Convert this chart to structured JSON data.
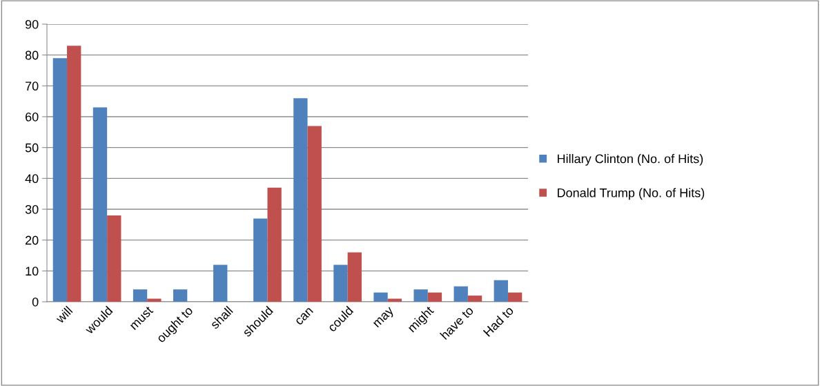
{
  "chart_data": {
    "type": "bar",
    "categories": [
      "will",
      "would",
      "must",
      "ought to",
      "shall",
      "should",
      "can",
      "could",
      "may",
      "might",
      "have to",
      "Had to"
    ],
    "series": [
      {
        "name": "Hillary Clinton (No. of Hits)",
        "color": "#4f81bd",
        "values": [
          79,
          63,
          4,
          4,
          12,
          27,
          66,
          12,
          3,
          4,
          5,
          7
        ]
      },
      {
        "name": "Donald Trump (No. of Hits)",
        "color": "#c0504d",
        "values": [
          83,
          28,
          1,
          0,
          0,
          37,
          57,
          16,
          1,
          3,
          2,
          3
        ]
      }
    ],
    "ylim": [
      0,
      90
    ],
    "yticks": [
      0,
      10,
      20,
      30,
      40,
      50,
      60,
      70,
      80,
      90
    ],
    "grid": "y",
    "legend": "right"
  }
}
